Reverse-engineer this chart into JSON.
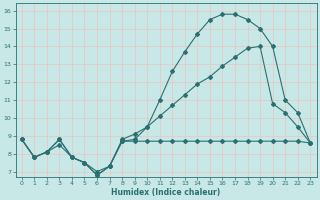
{
  "xlabel": "Humidex (Indice chaleur)",
  "background_color": "#c8e8e8",
  "grid_color": "#e8c8c8",
  "line_color": "#2a7070",
  "spine_color": "#2a7070",
  "xlim": [
    -0.5,
    23.5
  ],
  "ylim": [
    6.7,
    16.4
  ],
  "xticks": [
    0,
    1,
    2,
    3,
    4,
    5,
    6,
    7,
    8,
    9,
    10,
    11,
    12,
    13,
    14,
    15,
    16,
    17,
    18,
    19,
    20,
    21,
    22,
    23
  ],
  "yticks": [
    7,
    8,
    9,
    10,
    11,
    12,
    13,
    14,
    15,
    16
  ],
  "line1_x": [
    0,
    1,
    2,
    3,
    4,
    5,
    6,
    7,
    8,
    9,
    10,
    11,
    12,
    13,
    14,
    15,
    16,
    17,
    18,
    19,
    20,
    21,
    22,
    23
  ],
  "line1_y": [
    8.8,
    7.8,
    8.1,
    8.8,
    7.8,
    7.5,
    6.8,
    7.3,
    8.7,
    8.7,
    8.7,
    8.7,
    8.7,
    8.7,
    8.7,
    8.7,
    8.7,
    8.7,
    8.7,
    8.7,
    8.7,
    8.7,
    8.7,
    8.6
  ],
  "line2_x": [
    0,
    1,
    2,
    3,
    4,
    5,
    6,
    7,
    8,
    9,
    10,
    11,
    12,
    13,
    14,
    15,
    16,
    17,
    18,
    19,
    20,
    21,
    22,
    23
  ],
  "line2_y": [
    8.8,
    7.8,
    8.1,
    8.5,
    7.8,
    7.5,
    7.0,
    7.3,
    8.8,
    9.1,
    9.5,
    10.1,
    10.7,
    11.3,
    11.9,
    12.3,
    12.9,
    13.4,
    13.9,
    14.0,
    10.8,
    10.3,
    9.5,
    8.6
  ],
  "line3_x": [
    0,
    1,
    2,
    3,
    4,
    5,
    6,
    7,
    8,
    9,
    10,
    11,
    12,
    13,
    14,
    15,
    16,
    17,
    18,
    19,
    20,
    21,
    22,
    23
  ],
  "line3_y": [
    8.8,
    7.8,
    8.1,
    8.8,
    7.8,
    7.5,
    6.8,
    7.3,
    8.7,
    8.8,
    9.5,
    11.0,
    12.6,
    13.7,
    14.7,
    15.5,
    15.8,
    15.8,
    15.5,
    15.0,
    14.0,
    11.0,
    10.3,
    8.6
  ]
}
